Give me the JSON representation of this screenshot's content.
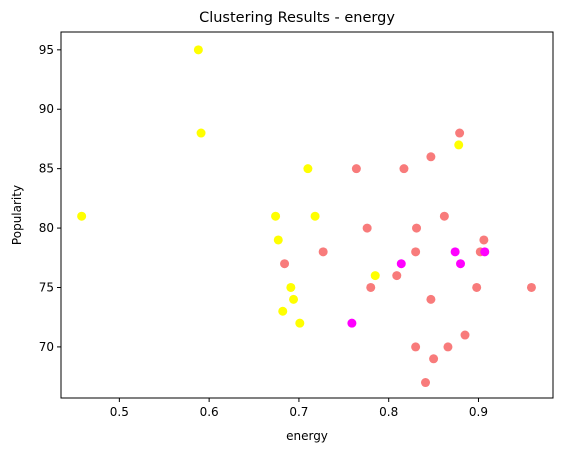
{
  "chart_data": {
    "type": "scatter",
    "title": "Clustering Results - energy",
    "xlabel": "energy",
    "ylabel": "Popularity",
    "xlim": [
      0.435,
      0.983
    ],
    "ylim": [
      65.7,
      96.5
    ],
    "xticks": [
      0.5,
      0.6,
      0.7,
      0.8,
      0.9
    ],
    "yticks": [
      70,
      75,
      80,
      85,
      90,
      95
    ],
    "grid": false,
    "legend": "none",
    "series": [
      {
        "color": "#f87b7b",
        "points": [
          [
            0.879,
            88
          ],
          [
            0.847,
            86
          ],
          [
            0.764,
            85
          ],
          [
            0.817,
            85
          ],
          [
            0.862,
            81
          ],
          [
            0.776,
            80
          ],
          [
            0.831,
            80
          ],
          [
            0.906,
            79
          ],
          [
            0.727,
            78
          ],
          [
            0.83,
            78
          ],
          [
            0.902,
            78
          ],
          [
            0.684,
            77
          ],
          [
            0.809,
            76
          ],
          [
            0.78,
            75
          ],
          [
            0.898,
            75
          ],
          [
            0.959,
            75
          ],
          [
            0.847,
            74
          ],
          [
            0.885,
            71
          ],
          [
            0.83,
            70
          ],
          [
            0.866,
            70
          ],
          [
            0.85,
            69
          ],
          [
            0.841,
            67
          ]
        ]
      },
      {
        "color": "#ffff00",
        "points": [
          [
            0.588,
            95
          ],
          [
            0.591,
            88
          ],
          [
            0.878,
            87
          ],
          [
            0.71,
            85
          ],
          [
            0.458,
            81
          ],
          [
            0.674,
            81
          ],
          [
            0.718,
            81
          ],
          [
            0.677,
            79
          ],
          [
            0.785,
            76
          ],
          [
            0.691,
            75
          ],
          [
            0.694,
            74
          ],
          [
            0.682,
            73
          ],
          [
            0.701,
            72
          ]
        ]
      },
      {
        "color": "#ff00ff",
        "points": [
          [
            0.874,
            78
          ],
          [
            0.907,
            78
          ],
          [
            0.814,
            77
          ],
          [
            0.88,
            77
          ],
          [
            0.759,
            72
          ]
        ]
      }
    ]
  }
}
